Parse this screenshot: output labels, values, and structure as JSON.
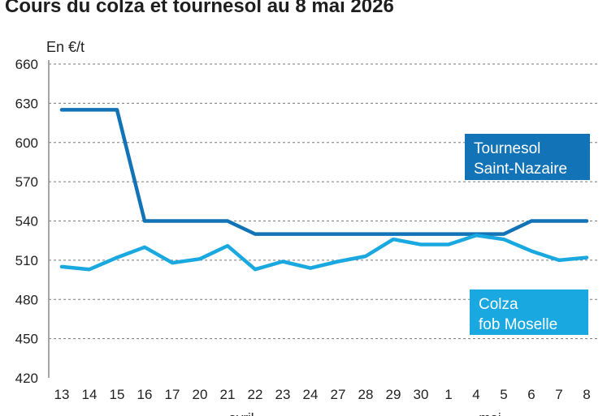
{
  "chart_data": {
    "type": "line",
    "title": "Cours du colza et tournesol au 8 mai 2026",
    "ylabel": "En €/t",
    "ylim": [
      420,
      660
    ],
    "yticks": [
      420,
      450,
      480,
      510,
      540,
      570,
      600,
      630,
      660
    ],
    "categories": [
      "13",
      "14",
      "15",
      "16",
      "17",
      "20",
      "21",
      "22",
      "23",
      "24",
      "27",
      "28",
      "29",
      "30",
      "1",
      "4",
      "5",
      "6",
      "7",
      "8"
    ],
    "month_labels": [
      {
        "label": "avril",
        "at_category": "22"
      },
      {
        "label": "mai",
        "at_category": "5"
      }
    ],
    "grid": true,
    "series": [
      {
        "name": "Tournesol Saint-Nazaire",
        "label_lines": [
          "Tournesol",
          "Saint-Nazaire"
        ],
        "color": "#1273b6",
        "values": [
          625,
          625,
          625,
          540,
          540,
          540,
          540,
          530,
          530,
          530,
          530,
          530,
          530,
          530,
          530,
          530,
          530,
          540,
          540,
          540
        ]
      },
      {
        "name": "Colza fob Moselle",
        "label_lines": [
          "Colza",
          "fob Moselle"
        ],
        "color": "#1aa8e0",
        "values": [
          505,
          503,
          512,
          520,
          508,
          511,
          521,
          503,
          509,
          504,
          509,
          513,
          526,
          522,
          522,
          529,
          526,
          517,
          510,
          512
        ]
      }
    ]
  }
}
